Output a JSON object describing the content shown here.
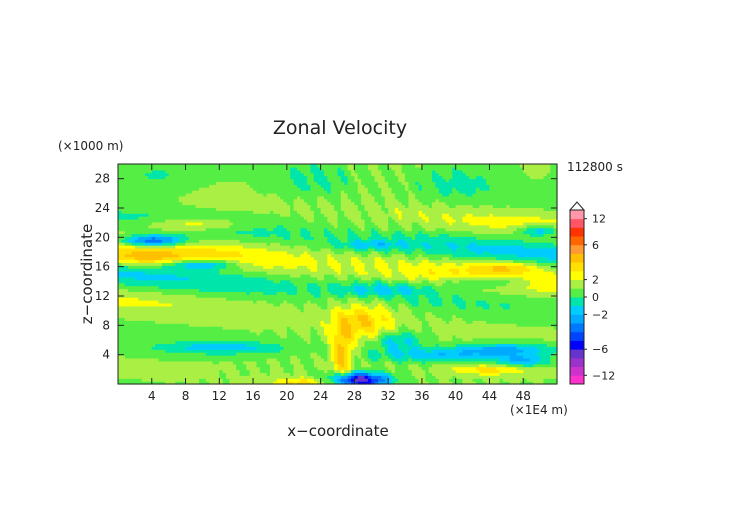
{
  "chart_data": {
    "type": "heatmap",
    "title": "Zonal Velocity",
    "xlabel": "x−coordinate",
    "ylabel": "z−coordinate",
    "x_unit": "(×1E4 m)",
    "y_unit": "(×1000 m)",
    "time_label": "112800 s",
    "xlim": [
      0,
      52
    ],
    "ylim": [
      0,
      30
    ],
    "x_ticks": [
      "4",
      "8",
      "12",
      "16",
      "20",
      "24",
      "28",
      "32",
      "36",
      "40",
      "44",
      "48"
    ],
    "y_ticks": [
      "4",
      "8",
      "12",
      "16",
      "20",
      "24",
      "28"
    ],
    "colorbar": {
      "tick_labels": [
        "12",
        "6",
        "2",
        "0",
        "−2",
        "−6",
        "−12"
      ],
      "levels": [
        -14,
        -12,
        -10,
        -8,
        -6,
        -5,
        -4,
        -3,
        -2,
        -1,
        0,
        1,
        2,
        3,
        4,
        5,
        6,
        8,
        10,
        12,
        14
      ],
      "colors": [
        "#ff33cc",
        "#cc33cc",
        "#9933cc",
        "#6633cc",
        "#0000ff",
        "#0044ff",
        "#0077ff",
        "#00aaff",
        "#00ccff",
        "#00e6aa",
        "#55ee44",
        "#aaf044",
        "#ffff00",
        "#ffe000",
        "#ffc000",
        "#ff9933",
        "#ff6600",
        "#ff3300",
        "#ff5566",
        "#ff99aa"
      ]
    }
  }
}
